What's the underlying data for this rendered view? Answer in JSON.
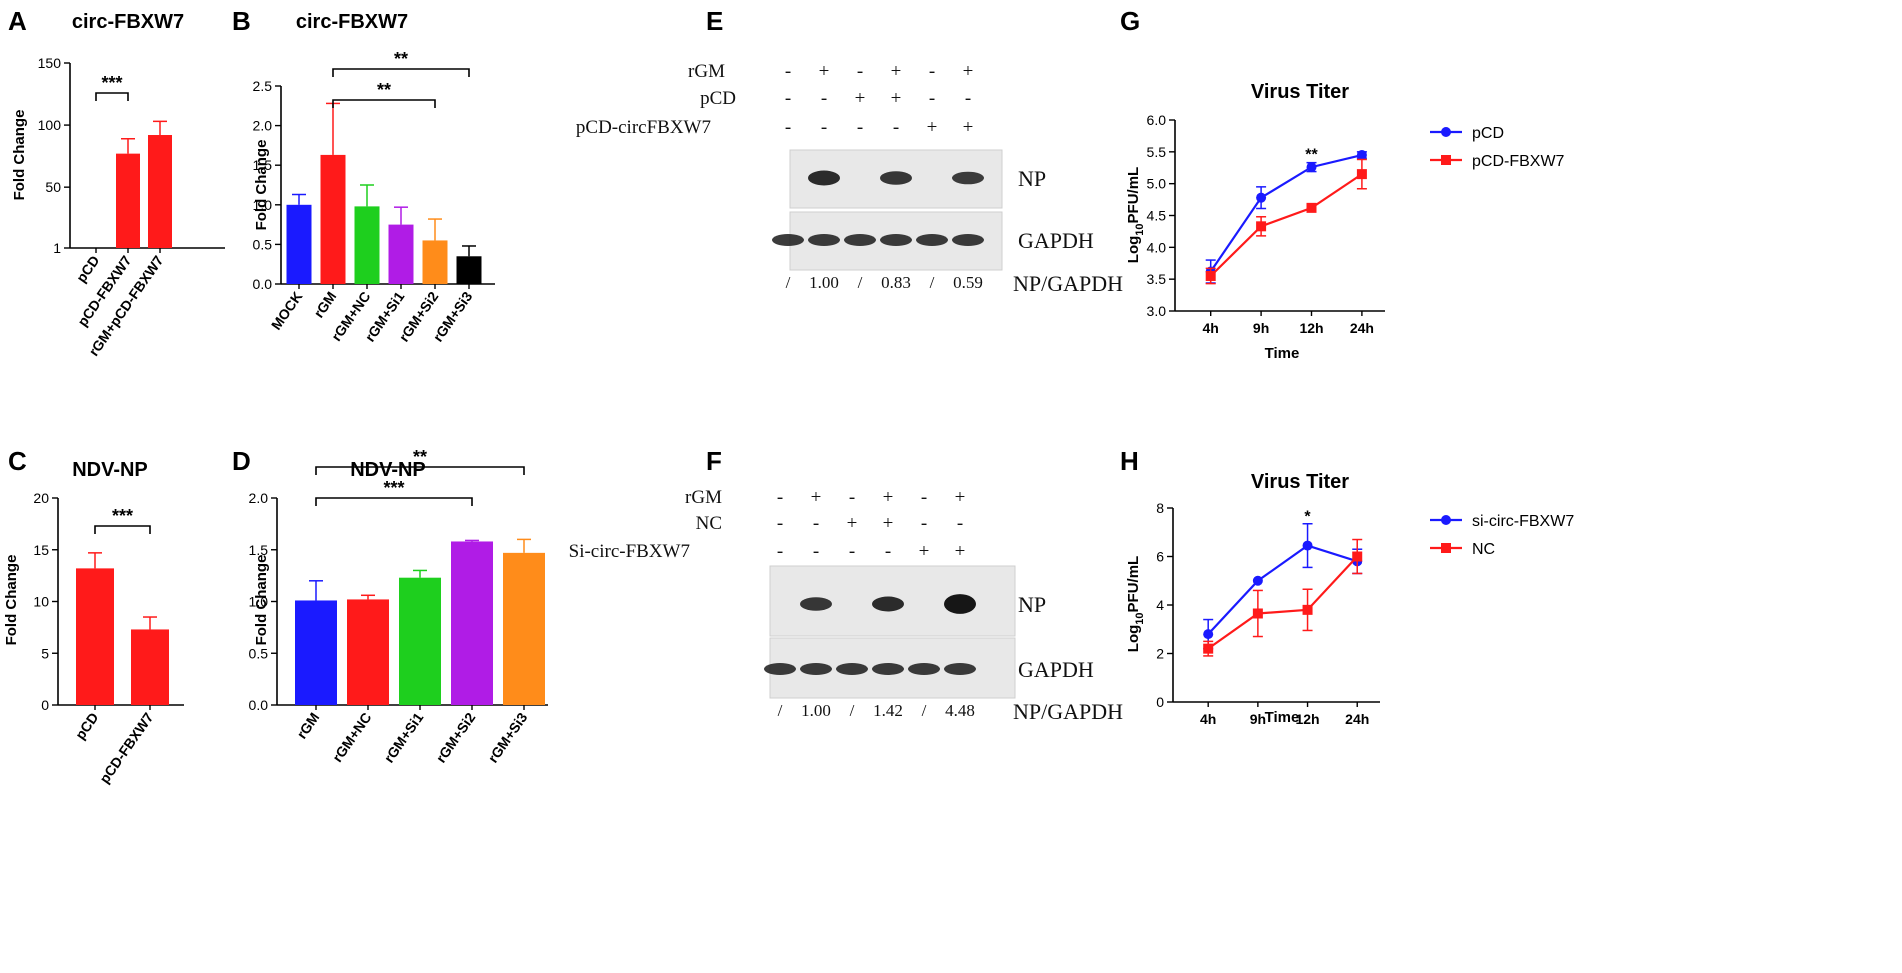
{
  "colors": {
    "blue": "#1a1aff",
    "red": "#ff1a1a",
    "green": "#1ecf1e",
    "purple": "#b01ce6",
    "orange": "#ff8c1a",
    "black": "#000000"
  },
  "panels": [
    {
      "letter": "A",
      "title": "circ-FBXW7",
      "ylabel": "Fold Change",
      "chart": {
        "type": "bar",
        "categories": [
          "pCD",
          "pCD-FBXW7",
          "rGM+pCD-FBXW7"
        ],
        "values": [
          1,
          77,
          92
        ],
        "errors": [
          0,
          12,
          11
        ],
        "colors": [
          "red",
          "red",
          "red"
        ],
        "ylim": [
          1,
          150
        ],
        "yticks": [
          1,
          50,
          100,
          150
        ],
        "rotate": true,
        "sig": [
          {
            "from": 0,
            "to": 1,
            "level": 0,
            "text": "***"
          }
        ]
      }
    },
    {
      "letter": "B",
      "title": "circ-FBXW7",
      "ylabel": "Fold Change",
      "chart": {
        "type": "bar",
        "categories": [
          "MOCK",
          "rGM",
          "rGM+NC",
          "rGM+Si1",
          "rGM+Si2",
          "rGM+Si3"
        ],
        "values": [
          1.0,
          1.63,
          0.98,
          0.75,
          0.55,
          0.35
        ],
        "errors": [
          0.13,
          0.65,
          0.27,
          0.22,
          0.27,
          0.13
        ],
        "colors": [
          "blue",
          "red",
          "green",
          "purple",
          "orange",
          "black"
        ],
        "ylim": [
          0,
          2.5
        ],
        "yticks": [
          0.0,
          0.5,
          1.0,
          1.5,
          2.0,
          2.5
        ],
        "ytickfmt": 1,
        "rotate": true,
        "sig": [
          {
            "from": 1,
            "to": 4,
            "level": 0,
            "text": "**"
          },
          {
            "from": 1,
            "to": 5,
            "level": 1,
            "text": "**"
          }
        ]
      }
    },
    {
      "letter": "C",
      "title": "NDV-NP",
      "ylabel": "Fold Change",
      "chart": {
        "type": "bar",
        "categories": [
          "pCD",
          "pCD-FBXW7"
        ],
        "values": [
          13.2,
          7.3
        ],
        "errors": [
          1.5,
          1.2
        ],
        "colors": [
          "red",
          "red"
        ],
        "ylim": [
          0,
          20
        ],
        "yticks": [
          0,
          5,
          10,
          15,
          20
        ],
        "rotate": true,
        "sig": [
          {
            "from": 0,
            "to": 1,
            "level": 0,
            "text": "***"
          }
        ]
      }
    },
    {
      "letter": "D",
      "title": "NDV-NP",
      "ylabel": "Fold Change",
      "chart": {
        "type": "bar",
        "categories": [
          "rGM",
          "rGM+NC",
          "rGM+Si1",
          "rGM+Si2",
          "rGM+Si3"
        ],
        "values": [
          1.01,
          1.02,
          1.23,
          1.58,
          1.47
        ],
        "errors": [
          0.19,
          0.04,
          0.07,
          0.01,
          0.13
        ],
        "colors": [
          "blue",
          "red",
          "green",
          "purple",
          "orange"
        ],
        "ylim": [
          0,
          2.0
        ],
        "yticks": [
          0.0,
          0.5,
          1.0,
          1.5,
          2.0
        ],
        "ytickfmt": 1,
        "rotate": true,
        "sig": [
          {
            "from": 0,
            "to": 3,
            "level": 0,
            "text": "***"
          },
          {
            "from": 0,
            "to": 4,
            "level": 1,
            "text": "**"
          }
        ]
      }
    },
    {
      "letter": "E",
      "blot": {
        "rows": [
          {
            "label": "rGM",
            "signs": [
              "-",
              "+",
              "-",
              "+",
              "-",
              "+"
            ]
          },
          {
            "label": "pCD",
            "signs": [
              "-",
              "-",
              "+",
              "+",
              "-",
              "-"
            ]
          },
          {
            "label": "pCD-circFBXW7",
            "signs": [
              "-",
              "-",
              "-",
              "-",
              "+",
              "+"
            ]
          }
        ],
        "bands": [
          "NP",
          "GAPDH"
        ],
        "np": [
          0,
          1,
          0,
          0.8,
          0,
          0.7
        ],
        "ratios": [
          "/",
          "1.00",
          "/",
          "0.83",
          "/",
          "0.59"
        ],
        "ratio_label": "NP/GAPDH"
      }
    },
    {
      "letter": "F",
      "blot": {
        "rows": [
          {
            "label": "rGM",
            "signs": [
              "-",
              "+",
              "-",
              "+",
              "-",
              "+"
            ]
          },
          {
            "label": "NC",
            "signs": [
              "-",
              "-",
              "+",
              "+",
              "-",
              "-"
            ]
          },
          {
            "label": "Si-circ-FBXW7",
            "signs": [
              "-",
              "-",
              "-",
              "-",
              "+",
              "+"
            ]
          }
        ],
        "bands": [
          "NP",
          "GAPDH"
        ],
        "np": [
          0,
          0.8,
          0,
          1.0,
          0,
          1.6
        ],
        "ratios": [
          "/",
          "1.00",
          "/",
          "1.42",
          "/",
          "4.48"
        ],
        "ratio_label": "NP/GAPDH"
      }
    },
    {
      "letter": "G",
      "title": "Virus Titer",
      "ylabel_main": "Log",
      "ylabel_sub": "10",
      "ylabel_rest": "PFU/mL",
      "xlabel": "Time",
      "chart": {
        "type": "line",
        "x": [
          "4h",
          "9h",
          "12h",
          "24h"
        ],
        "ylim": [
          3.0,
          6.0
        ],
        "yticks": [
          3.0,
          3.5,
          4.0,
          4.5,
          5.0,
          5.5,
          6.0
        ],
        "ytickfmt": 1,
        "series": [
          {
            "name": "pCD",
            "color": "blue",
            "values": [
              3.62,
              4.78,
              5.26,
              5.45
            ],
            "errors": [
              0.18,
              0.17,
              0.07,
              0.05
            ]
          },
          {
            "name": "pCD-FBXW7",
            "color": "red",
            "values": [
              3.55,
              4.33,
              4.62,
              5.15
            ],
            "errors": [
              0.12,
              0.15,
              0.06,
              0.23
            ]
          }
        ],
        "annotations": [
          {
            "xi": 2,
            "y": 5.38,
            "text": "**"
          }
        ]
      }
    },
    {
      "letter": "H",
      "title": "Virus Titer",
      "ylabel_main": "Log",
      "ylabel_sub": "10",
      "ylabel_rest": "PFU/mL",
      "xlabel": "Time",
      "chart": {
        "type": "line",
        "x": [
          "4h",
          "9h",
          "12h",
          "24h"
        ],
        "ylim": [
          0,
          8
        ],
        "yticks": [
          0,
          2,
          4,
          6,
          8
        ],
        "series": [
          {
            "name": "si-circ-FBXW7",
            "color": "blue",
            "values": [
              2.8,
              5.0,
              6.45,
              5.8
            ],
            "errors": [
              0.6,
              0.0,
              0.9,
              0.5
            ]
          },
          {
            "name": "NC",
            "color": "red",
            "values": [
              2.2,
              3.65,
              3.8,
              6.0
            ],
            "errors": [
              0.3,
              0.95,
              0.85,
              0.7
            ]
          }
        ],
        "annotations": [
          {
            "xi": 2,
            "y": 7.45,
            "text": "*"
          }
        ]
      }
    }
  ]
}
